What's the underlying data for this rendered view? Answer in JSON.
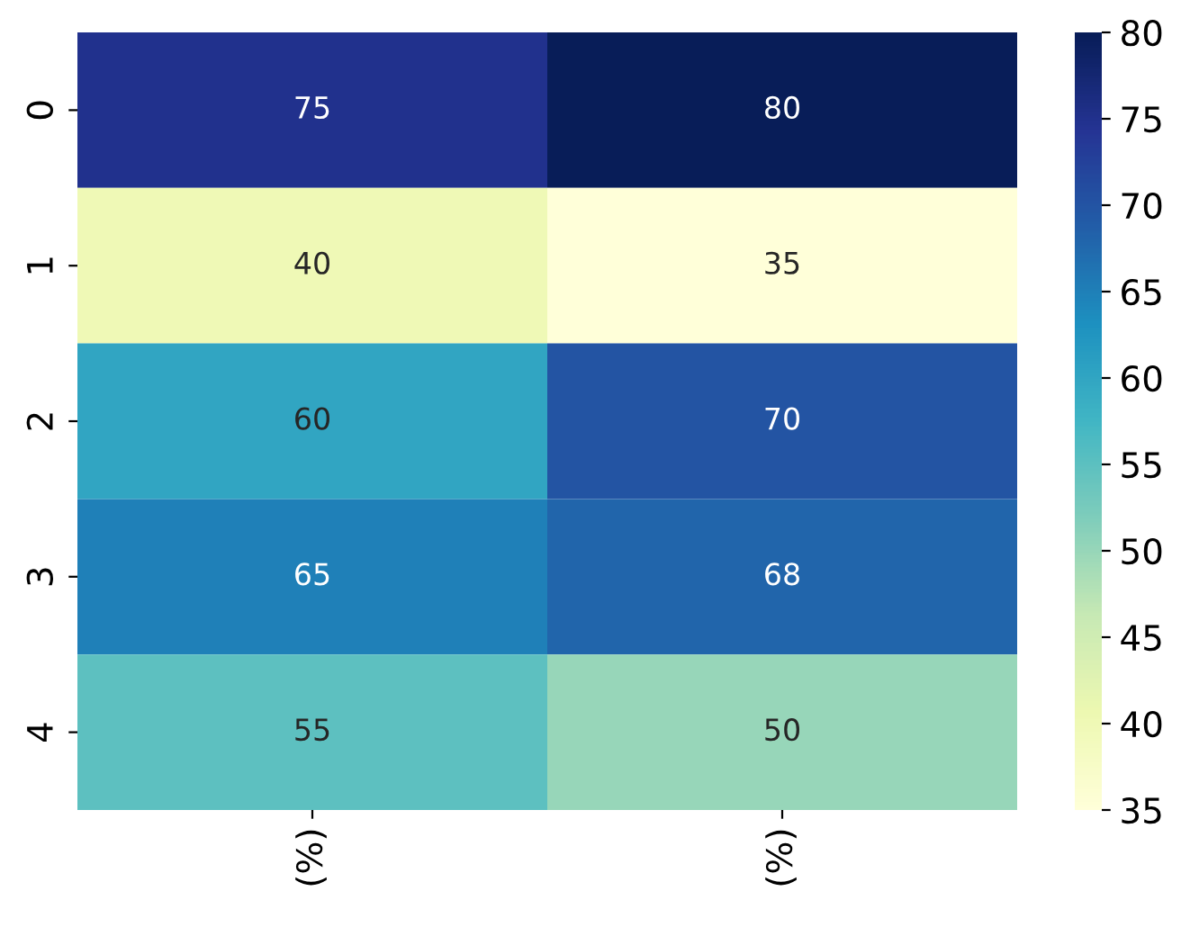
{
  "chart_data": {
    "type": "heatmap",
    "categories": [
      "(%)",
      "(%)"
    ],
    "y_categories": [
      "0",
      "1",
      "2",
      "3",
      "4"
    ],
    "cells": [
      [
        75,
        80
      ],
      [
        40,
        35
      ],
      [
        60,
        70
      ],
      [
        65,
        68
      ],
      [
        55,
        50
      ]
    ],
    "clim": [
      35,
      80
    ],
    "cticks": [
      35,
      40,
      45,
      50,
      55,
      60,
      65,
      70,
      75,
      80
    ],
    "data_labels": true
  }
}
